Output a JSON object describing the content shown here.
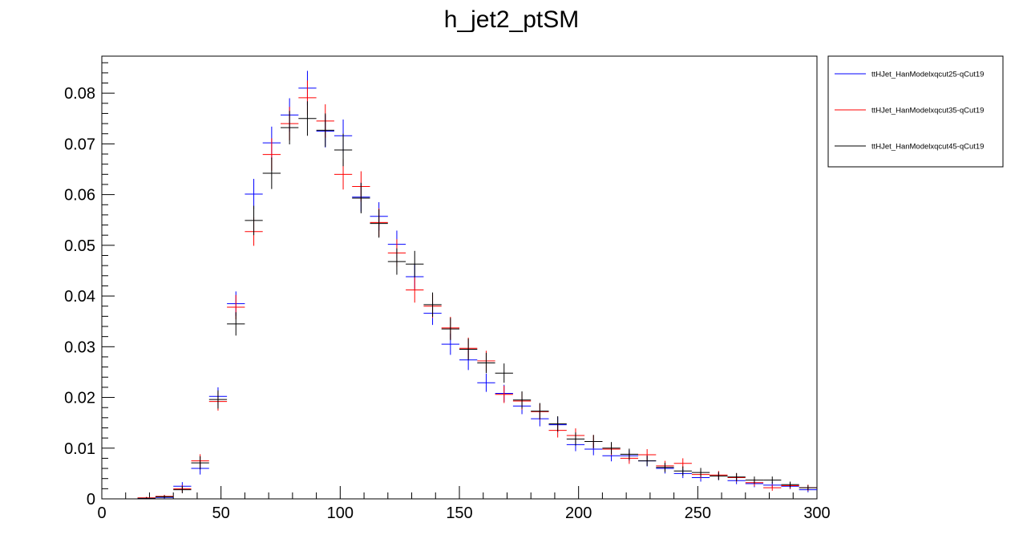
{
  "chart_data": {
    "type": "scatter",
    "title": "h_jet2_ptSM",
    "xlabel": "",
    "ylabel": "",
    "xlim": [
      0,
      300
    ],
    "ylim": [
      0,
      0.0873
    ],
    "x_ticks": [
      0,
      50,
      100,
      150,
      200,
      250,
      300
    ],
    "y_ticks": [
      0,
      0.01,
      0.02,
      0.03,
      0.04,
      0.05,
      0.06,
      0.07,
      0.08
    ],
    "y_tick_labels": [
      "0",
      "0.01",
      "0.02",
      "0.03",
      "0.04",
      "0.05",
      "0.06",
      "0.07",
      "0.08"
    ],
    "bin_width": 7.5,
    "grid": false,
    "legend_position": "top-right-outside",
    "x": [
      18.75,
      26.25,
      33.75,
      41.25,
      48.75,
      56.25,
      63.75,
      71.25,
      78.75,
      86.25,
      93.75,
      101.25,
      108.75,
      116.25,
      123.75,
      131.25,
      138.75,
      146.25,
      153.75,
      161.25,
      168.75,
      176.25,
      183.75,
      191.25,
      198.75,
      206.25,
      213.75,
      221.25,
      228.75,
      236.25,
      243.75,
      251.25,
      258.75,
      266.25,
      273.75,
      281.25,
      288.75,
      296.25
    ],
    "series": [
      {
        "name": "ttHJet_HanModelxqcut25-qCut19",
        "color": "#0000ff",
        "values": [
          0.0001,
          0.0003,
          0.0025,
          0.006,
          0.0202,
          0.0385,
          0.0601,
          0.0702,
          0.0757,
          0.081,
          0.0725,
          0.0716,
          0.0595,
          0.0557,
          0.0502,
          0.0438,
          0.0366,
          0.0305,
          0.0274,
          0.0229,
          0.0208,
          0.0183,
          0.0158,
          0.0146,
          0.0107,
          0.0098,
          0.0085,
          0.0085,
          0.0075,
          0.006,
          0.005,
          0.0042,
          0.0045,
          0.0036,
          0.003,
          0.0027,
          0.0025,
          0.0018
        ],
        "errors": [
          0.0002,
          0.0003,
          0.0008,
          0.0012,
          0.0018,
          0.0024,
          0.003,
          0.0032,
          0.0033,
          0.0034,
          0.0032,
          0.0032,
          0.0029,
          0.0028,
          0.0027,
          0.0025,
          0.0023,
          0.0021,
          0.002,
          0.0018,
          0.0017,
          0.0016,
          0.0015,
          0.0015,
          0.0013,
          0.0012,
          0.0011,
          0.0011,
          0.0011,
          0.001,
          0.0009,
          0.0008,
          0.0008,
          0.0007,
          0.0007,
          0.0006,
          0.0006,
          0.0005
        ]
      },
      {
        "name": "ttHJet_HanModelxqcut35-qCut19",
        "color": "#ff0000",
        "values": [
          0.0002,
          0.0005,
          0.002,
          0.0075,
          0.0192,
          0.0378,
          0.0527,
          0.0679,
          0.074,
          0.0791,
          0.0745,
          0.064,
          0.0616,
          0.0545,
          0.0485,
          0.0412,
          0.038,
          0.0337,
          0.0297,
          0.0272,
          0.0206,
          0.0193,
          0.0172,
          0.0135,
          0.0125,
          0.0113,
          0.0098,
          0.008,
          0.0087,
          0.0065,
          0.007,
          0.0048,
          0.0047,
          0.0042,
          0.0032,
          0.0022,
          0.0026,
          0.0022
        ],
        "errors": [
          0.0002,
          0.0003,
          0.0007,
          0.0013,
          0.0018,
          0.0024,
          0.0028,
          0.0032,
          0.0033,
          0.0034,
          0.0033,
          0.003,
          0.003,
          0.0028,
          0.0027,
          0.0025,
          0.0023,
          0.0022,
          0.0021,
          0.002,
          0.0017,
          0.0017,
          0.0016,
          0.0014,
          0.0014,
          0.0013,
          0.0012,
          0.0011,
          0.0011,
          0.001,
          0.001,
          0.0008,
          0.0008,
          0.0008,
          0.0007,
          0.0006,
          0.0006,
          0.0006
        ]
      },
      {
        "name": "ttHJet_HanModelxqcut45-qCut19",
        "color": "#000000",
        "values": [
          0.0001,
          0.0004,
          0.0018,
          0.0071,
          0.0196,
          0.0345,
          0.0549,
          0.0642,
          0.0732,
          0.075,
          0.0727,
          0.0688,
          0.0593,
          0.0543,
          0.0468,
          0.0463,
          0.0383,
          0.0335,
          0.0295,
          0.0268,
          0.0248,
          0.0195,
          0.0173,
          0.0148,
          0.0118,
          0.0113,
          0.01,
          0.0088,
          0.0075,
          0.0062,
          0.0055,
          0.0052,
          0.0045,
          0.0043,
          0.0037,
          0.0037,
          0.0028,
          0.0022
        ],
        "errors": [
          0.0002,
          0.0003,
          0.0007,
          0.0013,
          0.0018,
          0.0023,
          0.0029,
          0.0031,
          0.0033,
          0.0034,
          0.0033,
          0.0032,
          0.003,
          0.0028,
          0.0026,
          0.0026,
          0.0024,
          0.0022,
          0.0021,
          0.002,
          0.0019,
          0.0017,
          0.0016,
          0.0015,
          0.0013,
          0.0013,
          0.0012,
          0.0011,
          0.001,
          0.0009,
          0.0009,
          0.0009,
          0.0008,
          0.0008,
          0.0007,
          0.0007,
          0.0006,
          0.0005
        ]
      }
    ]
  }
}
